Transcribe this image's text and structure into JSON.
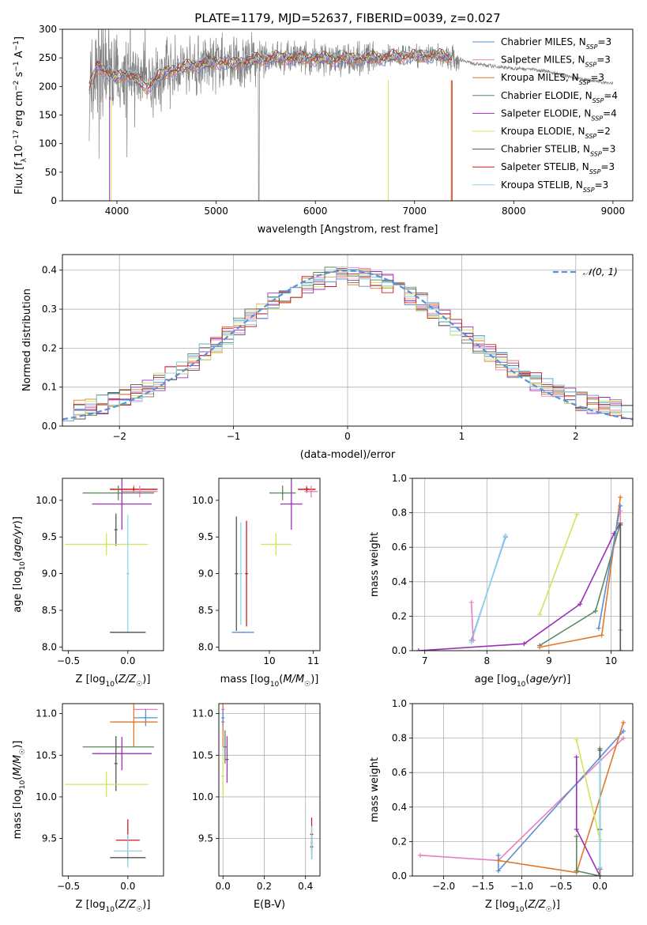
{
  "figure": {
    "title": "PLATE=1179, MJD=52637, FIBERID=0039, z=0.027"
  },
  "colors": {
    "Chabrier MILES": "#5b8fd6",
    "Salpeter MILES": "#e87fbf",
    "Kroupa MILES": "#e07a2a",
    "Chabrier ELODIE": "#5a8a5e",
    "Salpeter ELODIE": "#9b30b8",
    "Kroupa ELODIE": "#d4e35a",
    "Chabrier STELIB": "#555555",
    "Salpeter STELIB": "#c81e1e",
    "Kroupa STELIB": "#8fd6e8",
    "data": "#808080",
    "gauss": "#5b8fd6"
  },
  "chart_data": [
    {
      "id": "spectrum",
      "type": "line",
      "title": "PLATE=1179, MJD=52637, FIBERID=0039, z=0.027",
      "xlabel": "wavelength [Angstrom, rest frame]",
      "ylabel": "Flux [f_λ 10^-17 erg cm^-2 s^-1 A^-1]",
      "xlim": [
        3450,
        9200
      ],
      "ylim": [
        0,
        300
      ],
      "xticks": [
        4000,
        5000,
        6000,
        7000,
        8000,
        9000
      ],
      "yticks": [
        0,
        50,
        100,
        150,
        200,
        250,
        300
      ],
      "legend_position": "top-right",
      "legend": [
        {
          "label": "Chabrier MILES, N",
          "sub": "SSP",
          "suffix": "=3",
          "color_key": "Chabrier MILES"
        },
        {
          "label": "Salpeter MILES, N",
          "sub": "SSP",
          "suffix": "=3",
          "color_key": "Salpeter MILES"
        },
        {
          "label": "Kroupa MILES, N",
          "sub": "SSP",
          "suffix": "=3",
          "color_key": "Kroupa MILES"
        },
        {
          "label": "Chabrier ELODIE, N",
          "sub": "SSP",
          "suffix": "=4",
          "color_key": "Chabrier ELODIE"
        },
        {
          "label": "Salpeter ELODIE, N",
          "sub": "SSP",
          "suffix": "=4",
          "color_key": "Salpeter ELODIE"
        },
        {
          "label": "Kroupa ELODIE, N",
          "sub": "SSP",
          "suffix": "=2",
          "color_key": "Kroupa ELODIE"
        },
        {
          "label": "Chabrier STELIB, N",
          "sub": "SSP",
          "suffix": "=3",
          "color_key": "Chabrier STELIB"
        },
        {
          "label": "Salpeter STELIB, N",
          "sub": "SSP",
          "suffix": "=3",
          "color_key": "Salpeter STELIB"
        },
        {
          "label": "Kroupa STELIB, N",
          "sub": "SSP",
          "suffix": "=3",
          "color_key": "Kroupa STELIB"
        }
      ],
      "data_range": [
        3720,
        9000
      ],
      "continuum": [
        [
          3720,
          195
        ],
        [
          3800,
          235
        ],
        [
          3900,
          225
        ],
        [
          4000,
          215
        ],
        [
          4100,
          222
        ],
        [
          4200,
          212
        ],
        [
          4300,
          198
        ],
        [
          4400,
          215
        ],
        [
          4500,
          225
        ],
        [
          4600,
          230
        ],
        [
          4700,
          235
        ],
        [
          4800,
          238
        ],
        [
          4900,
          240
        ],
        [
          5000,
          243
        ],
        [
          5200,
          240
        ],
        [
          5400,
          247
        ],
        [
          5600,
          250
        ],
        [
          5800,
          250
        ],
        [
          6000,
          249
        ],
        [
          6200,
          248
        ],
        [
          6400,
          249
        ],
        [
          6600,
          250
        ],
        [
          6800,
          252
        ],
        [
          7000,
          253
        ],
        [
          7200,
          255
        ],
        [
          7400,
          250
        ],
        [
          7600,
          240
        ],
        [
          7800,
          235
        ],
        [
          8000,
          232
        ],
        [
          8200,
          230
        ],
        [
          8400,
          224
        ],
        [
          8600,
          215
        ],
        [
          8800,
          210
        ],
        [
          9000,
          205
        ]
      ]
    },
    {
      "id": "residuals",
      "type": "histogram",
      "xlabel": "(data-model)/error",
      "ylabel": "Normed distribution",
      "xlim": [
        -2.5,
        2.5
      ],
      "ylim": [
        0,
        0.44
      ],
      "xticks": [
        -2,
        -1,
        0,
        1,
        2
      ],
      "yticks": [
        0.0,
        0.1,
        0.2,
        0.3,
        0.4
      ],
      "grid": true,
      "legend_position": "top-right",
      "legend": [
        {
          "label": "𝒩(0, 1)",
          "color_key": "gauss"
        }
      ],
      "bin_width": 0.1
    },
    {
      "id": "age-z",
      "type": "errorbar",
      "xlabel": "Z [log10(Z/Z⊙)]",
      "ylabel": "age [log10(age/yr)]",
      "xlim": [
        -0.55,
        0.3
      ],
      "ylim": [
        7.95,
        10.3
      ],
      "xticks": [
        -0.5,
        0.0
      ],
      "yticks": [
        8.0,
        8.5,
        9.0,
        9.5,
        10.0
      ],
      "points": [
        {
          "c": "Kroupa MILES",
          "x": 0.05,
          "xe": 0.2,
          "y": 10.15,
          "ye": 0.05
        },
        {
          "c": "Salpeter STELIB",
          "x": 0.05,
          "xe": 0.2,
          "y": 10.15,
          "ye": 0.03
        },
        {
          "c": "Salpeter MILES",
          "x": 0.1,
          "xe": 0.15,
          "y": 10.12,
          "ye": 0.08
        },
        {
          "c": "Chabrier ELODIE",
          "x": -0.08,
          "xe": 0.3,
          "y": 10.1,
          "ye": 0.1
        },
        {
          "c": "Salpeter ELODIE",
          "x": -0.05,
          "xe": 0.25,
          "y": 9.95,
          "ye": 0.35
        },
        {
          "c": "Chabrier STELIB",
          "x": -0.1,
          "xe": 0.0,
          "y": 9.6,
          "ye": 0.22
        },
        {
          "c": "Kroupa ELODIE",
          "x": -0.18,
          "xe": 0.35,
          "y": 9.4,
          "ye": 0.15
        },
        {
          "c": "Kroupa STELIB",
          "x": 0.0,
          "xe": 0.0,
          "y": 9.0,
          "ye": 0.8
        },
        {
          "c": "Chabrier MILES",
          "x": 0.0,
          "xe": 0.15,
          "y": 8.2,
          "ye": 0.0
        },
        {
          "c": "Chabrier STELIB",
          "x": 0.0,
          "xe": 0.15,
          "y": 8.2,
          "ye": 0.0
        }
      ]
    },
    {
      "id": "age-mass",
      "type": "errorbar",
      "xlabel": "mass [log10(M/M⊙)]",
      "xlim": [
        8.85,
        11.15
      ],
      "ylim": [
        7.95,
        10.3
      ],
      "xticks": [
        10,
        11
      ],
      "yticks": [
        8.0,
        8.5,
        9.0,
        9.5,
        10.0
      ],
      "points": [
        {
          "c": "Kroupa MILES",
          "x": 10.85,
          "xe": 0.2,
          "y": 10.15,
          "ye": 0.05
        },
        {
          "c": "Salpeter STELIB",
          "x": 10.85,
          "xe": 0.2,
          "y": 10.15,
          "ye": 0.03
        },
        {
          "c": "Salpeter MILES",
          "x": 10.95,
          "xe": 0.15,
          "y": 10.12,
          "ye": 0.08
        },
        {
          "c": "Chabrier ELODIE",
          "x": 10.3,
          "xe": 0.3,
          "y": 10.1,
          "ye": 0.1
        },
        {
          "c": "Salpeter ELODIE",
          "x": 10.5,
          "xe": 0.25,
          "y": 9.95,
          "ye": 0.35
        },
        {
          "c": "Kroupa ELODIE",
          "x": 10.15,
          "xe": 0.35,
          "y": 9.4,
          "ye": 0.15
        },
        {
          "c": "Chabrier STELIB",
          "x": 9.25,
          "xe": 0.0,
          "y": 9.0,
          "ye": 0.78
        },
        {
          "c": "Salpeter STELIB",
          "x": 9.48,
          "xe": 0.0,
          "y": 9.0,
          "ye": 0.72
        },
        {
          "c": "Kroupa STELIB",
          "x": 9.35,
          "xe": 0.0,
          "y": 9.0,
          "ye": 0.7
        },
        {
          "c": "Chabrier MILES",
          "x": 9.4,
          "xe": 0.25,
          "y": 8.2,
          "ye": 0.0
        }
      ]
    },
    {
      "id": "weight-age",
      "type": "line",
      "xlabel": "age [log10(age/yr)]",
      "ylabel": "mass weight",
      "xlim": [
        6.8,
        10.35
      ],
      "ylim": [
        0,
        1
      ],
      "xticks": [
        7,
        8,
        9,
        10
      ],
      "yticks": [
        0.0,
        0.2,
        0.4,
        0.6,
        0.8,
        1.0
      ],
      "grid": true,
      "series": [
        {
          "c": "Chabrier MILES",
          "x": [
            7.75,
            8.3
          ],
          "y": [
            0.06,
            0.66
          ]
        },
        {
          "c": "Kroupa STELIB",
          "x": [
            7.75,
            8.3
          ],
          "y": [
            0.05,
            0.67
          ]
        },
        {
          "c": "Salpeter MILES",
          "x": [
            7.75,
            7.78
          ],
          "y": [
            0.28,
            0.06
          ]
        },
        {
          "c": "Salpeter ELODIE",
          "x": [
            6.9,
            8.6,
            9.5,
            10.05,
            10.15
          ],
          "y": [
            0.0,
            0.04,
            0.27,
            0.68,
            0.74
          ]
        },
        {
          "c": "Chabrier ELODIE",
          "x": [
            8.85,
            9.75,
            10.15
          ],
          "y": [
            0.03,
            0.23,
            0.74
          ]
        },
        {
          "c": "Kroupa ELODIE",
          "x": [
            8.85,
            9.45
          ],
          "y": [
            0.21,
            0.79
          ]
        },
        {
          "c": "Kroupa MILES",
          "x": [
            8.85,
            9.85,
            10.15
          ],
          "y": [
            0.02,
            0.09,
            0.89
          ]
        },
        {
          "c": "Chabrier MILES",
          "x": [
            9.8,
            10.15
          ],
          "y": [
            0.13,
            0.84
          ]
        },
        {
          "c": "Salpeter MILES",
          "x": [
            10.15,
            10.15
          ],
          "y": [
            0.12,
            0.81
          ]
        },
        {
          "c": "Chabrier STELIB",
          "x": [
            10.15,
            10.15
          ],
          "y": [
            0.0,
            0.73
          ]
        }
      ]
    },
    {
      "id": "mass-z",
      "type": "errorbar",
      "xlabel": "Z [log10(Z/Z⊙)]",
      "ylabel": "mass [log10(M/M⊙)]",
      "xlim": [
        -0.55,
        0.3
      ],
      "ylim": [
        9.05,
        11.12
      ],
      "xticks": [
        -0.5,
        0.0
      ],
      "yticks": [
        9.5,
        10.0,
        10.5,
        11.0
      ],
      "points": [
        {
          "c": "Salpeter MILES",
          "x": 0.15,
          "xe": 0.1,
          "y": 11.05,
          "ye": 0.0
        },
        {
          "c": "Chabrier MILES",
          "x": 0.15,
          "xe": 0.1,
          "y": 10.95,
          "ye": 0.1
        },
        {
          "c": "Kroupa MILES",
          "x": 0.05,
          "xe": 0.2,
          "y": 10.9,
          "ye": 0.3
        },
        {
          "c": "Chabrier ELODIE",
          "x": -0.08,
          "xe": 0.3,
          "y": 10.6,
          "ye": 0.0
        },
        {
          "c": "Chabrier ELODIE",
          "x": -0.08,
          "xe": 0.0,
          "y": 10.6,
          "ye": 0.0
        },
        {
          "c": "Salpeter ELODIE",
          "x": -0.05,
          "xe": 0.25,
          "y": 10.52,
          "ye": 0.2
        },
        {
          "c": "Chabrier STELIB",
          "x": -0.1,
          "xe": 0.0,
          "y": 10.4,
          "ye": 0.33
        },
        {
          "c": "Kroupa ELODIE",
          "x": -0.18,
          "xe": 0.35,
          "y": 10.15,
          "ye": 0.15
        },
        {
          "c": "Salpeter STELIB",
          "x": 0.0,
          "xe": 0.1,
          "y": 9.48,
          "ye": 0.25
        },
        {
          "c": "Kroupa STELIB",
          "x": 0.0,
          "xe": 0.12,
          "y": 9.35,
          "ye": 0.2
        },
        {
          "c": "Chabrier STELIB",
          "x": 0.0,
          "xe": 0.15,
          "y": 9.27,
          "ye": 0.0
        }
      ]
    },
    {
      "id": "mass-ebv",
      "type": "errorbar",
      "xlabel": "E(B-V)",
      "xlim": [
        -0.02,
        0.47
      ],
      "ylim": [
        9.05,
        11.12
      ],
      "xticks": [
        0.0,
        0.2,
        0.4
      ],
      "yticks": [
        9.5,
        10.0,
        10.5,
        11.0
      ],
      "grid": true,
      "points": [
        {
          "c": "Salpeter MILES",
          "x": 0.0,
          "xe": 0.0,
          "y": 11.05,
          "ye": 0.05
        },
        {
          "c": "Kroupa MILES",
          "x": 0.0,
          "xe": 0.0,
          "y": 10.9,
          "ye": 0.3
        },
        {
          "c": "Chabrier MILES",
          "x": 0.0,
          "xe": 0.0,
          "y": 10.95,
          "ye": 0.1
        },
        {
          "c": "Chabrier ELODIE",
          "x": 0.01,
          "xe": 0.0,
          "y": 10.6,
          "ye": 0.2
        },
        {
          "c": "Salpeter ELODIE",
          "x": 0.02,
          "xe": 0.0,
          "y": 10.45,
          "ye": 0.28
        },
        {
          "c": "Kroupa ELODIE",
          "x": 0.0,
          "xe": 0.0,
          "y": 10.25,
          "ye": 0.25
        },
        {
          "c": "Chabrier STELIB",
          "x": 0.43,
          "xe": 0.0,
          "y": 9.4,
          "ye": 0.15
        },
        {
          "c": "Salpeter STELIB",
          "x": 0.43,
          "xe": 0.0,
          "y": 9.55,
          "ye": 0.2
        },
        {
          "c": "Kroupa STELIB",
          "x": 0.43,
          "xe": 0.0,
          "y": 9.45,
          "ye": 0.2
        }
      ]
    },
    {
      "id": "weight-z",
      "type": "line",
      "xlabel": "Z [log10(Z/Z⊙)]",
      "ylabel": "mass weight",
      "xlim": [
        -2.4,
        0.42
      ],
      "ylim": [
        0,
        1
      ],
      "xticks": [
        -2.0,
        -1.5,
        -1.0,
        -0.5,
        0.0
      ],
      "yticks": [
        0.0,
        0.2,
        0.4,
        0.6,
        0.8,
        1.0
      ],
      "grid": true,
      "series": [
        {
          "c": "Salpeter MILES",
          "x": [
            -2.3,
            -1.3,
            0.3
          ],
          "y": [
            0.12,
            0.09,
            0.8
          ]
        },
        {
          "c": "Chabrier MILES",
          "x": [
            -1.3,
            -1.3,
            0.3
          ],
          "y": [
            0.12,
            0.03,
            0.84
          ]
        },
        {
          "c": "Kroupa MILES",
          "x": [
            -1.3,
            -0.3,
            0.3
          ],
          "y": [
            0.09,
            0.02,
            0.89
          ]
        },
        {
          "c": "Salpeter ELODIE",
          "x": [
            -0.3,
            -0.3,
            0.0,
            0.0
          ],
          "y": [
            0.69,
            0.27,
            0.0,
            0.04
          ]
        },
        {
          "c": "Chabrier ELODIE",
          "x": [
            -0.3,
            -0.3,
            0.0,
            0.0
          ],
          "y": [
            0.23,
            0.03,
            0.0,
            0.74
          ]
        },
        {
          "c": "Kroupa ELODIE",
          "x": [
            -0.3,
            0.0
          ],
          "y": [
            0.79,
            0.21
          ]
        },
        {
          "c": "Chabrier STELIB",
          "x": [
            0.0,
            0.0
          ],
          "y": [
            0.73,
            0.27
          ]
        },
        {
          "c": "Kroupa STELIB",
          "x": [
            0.0,
            0.0
          ],
          "y": [
            0.67,
            0.05
          ]
        }
      ]
    }
  ]
}
